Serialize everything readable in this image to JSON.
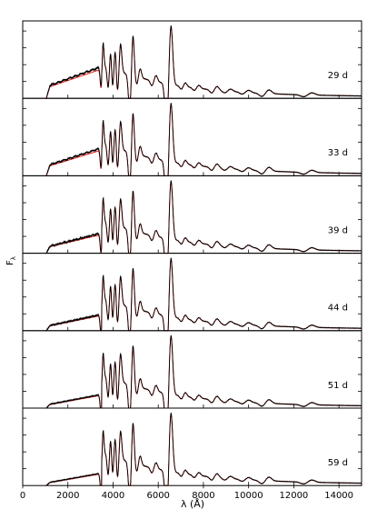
{
  "figure": {
    "ylabel": "F",
    "ylabel_sub": "λ",
    "xlabel": "λ (Å)"
  },
  "colors": {
    "observed": "#000000",
    "model": "#e8221b",
    "axes": "#000000"
  },
  "chart_data": {
    "type": "line",
    "title": "",
    "xlabel": "λ (Å)",
    "ylabel": "Fλ",
    "xlim": [
      0,
      15000
    ],
    "x_ticks": [
      0,
      2000,
      4000,
      6000,
      8000,
      10000,
      12000,
      14000
    ],
    "x_tick_labels": [
      "0",
      "2000",
      "4000",
      "6000",
      "8000",
      "10000",
      "12000",
      "14000"
    ],
    "grid": false,
    "series_legend": [
      "observed spectrum (black)",
      "model spectrum (red)"
    ],
    "panels": [
      {
        "label": "29 d",
        "uv_flux_scale": 1.0
      },
      {
        "label": "33 d",
        "uv_flux_scale": 0.85
      },
      {
        "label": "39 d",
        "uv_flux_scale": 0.55
      },
      {
        "label": "44 d",
        "uv_flux_scale": 0.4
      },
      {
        "label": "51 d",
        "uv_flux_scale": 0.3
      },
      {
        "label": "59 d",
        "uv_flux_scale": 0.25
      }
    ]
  }
}
